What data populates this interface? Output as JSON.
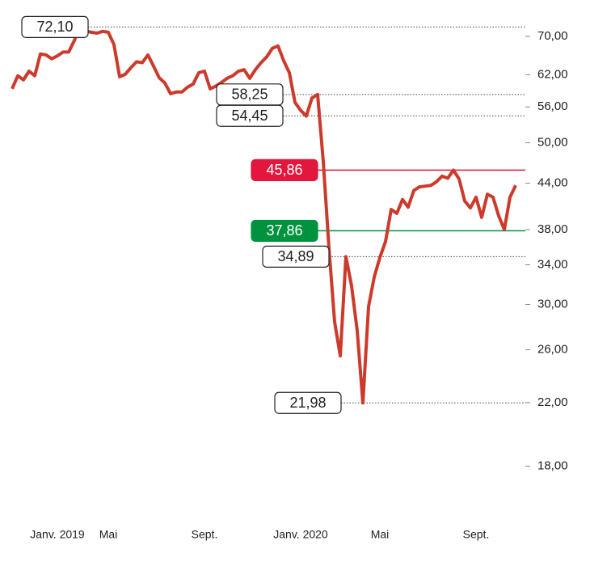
{
  "chart_data": {
    "type": "line",
    "log_scale": true,
    "categories": [
      null,
      null,
      null,
      null,
      null,
      null,
      null,
      null,
      "Janv. 2019",
      null,
      null,
      null,
      null,
      null,
      null,
      null,
      null,
      "Mai",
      null,
      null,
      null,
      null,
      null,
      null,
      null,
      null,
      null,
      null,
      null,
      null,
      null,
      null,
      null,
      null,
      "Sept.",
      null,
      null,
      null,
      null,
      null,
      null,
      null,
      null,
      null,
      null,
      null,
      null,
      null,
      null,
      null,
      null,
      "Janv. 2020",
      null,
      null,
      null,
      null,
      null,
      null,
      null,
      null,
      null,
      null,
      null,
      null,
      null,
      "Mai",
      null,
      null,
      null,
      null,
      null,
      null,
      null,
      null,
      null,
      null,
      null,
      null,
      null,
      null,
      null,
      null,
      "Sept.",
      null,
      null,
      null,
      null,
      null,
      null,
      null
    ],
    "series": [
      {
        "color": "#cc3a2c",
        "values": [
          59.3,
          61.8,
          61.0,
          62.7,
          61.8,
          66.2,
          66.0,
          65.2,
          65.8,
          66.6,
          66.6,
          69.1,
          72.1,
          71.2,
          70.9,
          70.7,
          71.1,
          70.9,
          68.2,
          61.6,
          62.1,
          63.4,
          64.6,
          64.4,
          66.0,
          63.7,
          61.4,
          60.4,
          58.4,
          58.7,
          58.7,
          59.6,
          60.2,
          62.4,
          62.7,
          59.3,
          59.8,
          60.5,
          61.3,
          61.8,
          62.7,
          63.0,
          61.3,
          63.0,
          64.4,
          65.6,
          67.4,
          67.9,
          64.8,
          62.4,
          56.8,
          55.4,
          54.4,
          57.6,
          58.25,
          47.1,
          35.9,
          28.4,
          25.5,
          34.89,
          31.8,
          27.6,
          21.98,
          29.8,
          32.7,
          34.8,
          36.6,
          40.5,
          40.0,
          41.8,
          40.8,
          43.0,
          43.5,
          43.6,
          43.7,
          44.2,
          45.0,
          44.7,
          45.86,
          44.6,
          41.6,
          40.7,
          42.1,
          39.5,
          42.5,
          42.1,
          39.7,
          38.0,
          42.1,
          43.7
        ]
      }
    ],
    "ylim": [
      15.3,
      74.6
    ],
    "yticks": [
      {
        "value": 18,
        "label": "18,00"
      },
      {
        "value": 22,
        "label": "22,00"
      },
      {
        "value": 26,
        "label": "26,00"
      },
      {
        "value": 30,
        "label": "30,00"
      },
      {
        "value": 34,
        "label": "34,00"
      },
      {
        "value": 38,
        "label": "38,00"
      },
      {
        "value": 44,
        "label": "44,00"
      },
      {
        "value": 50,
        "label": "50,00"
      },
      {
        "value": 56,
        "label": "56,00"
      },
      {
        "value": 62,
        "label": "62,00"
      },
      {
        "value": 70,
        "label": "70,00"
      }
    ],
    "levels": [
      {
        "value": 72.1,
        "label": "72,10",
        "style": "dotted"
      },
      {
        "value": 58.25,
        "label": "58,25",
        "style": "dotted"
      },
      {
        "value": 54.45,
        "label": "54,45",
        "style": "dotted"
      },
      {
        "value": 45.86,
        "label": "45,86",
        "style": "solid",
        "color": "#e3173e"
      },
      {
        "value": 37.86,
        "label": "37,86",
        "style": "solid",
        "color": "#00923f"
      },
      {
        "value": 34.89,
        "label": "34,89",
        "style": "dotted"
      },
      {
        "value": 21.98,
        "label": "21,98",
        "style": "dotted"
      }
    ]
  }
}
